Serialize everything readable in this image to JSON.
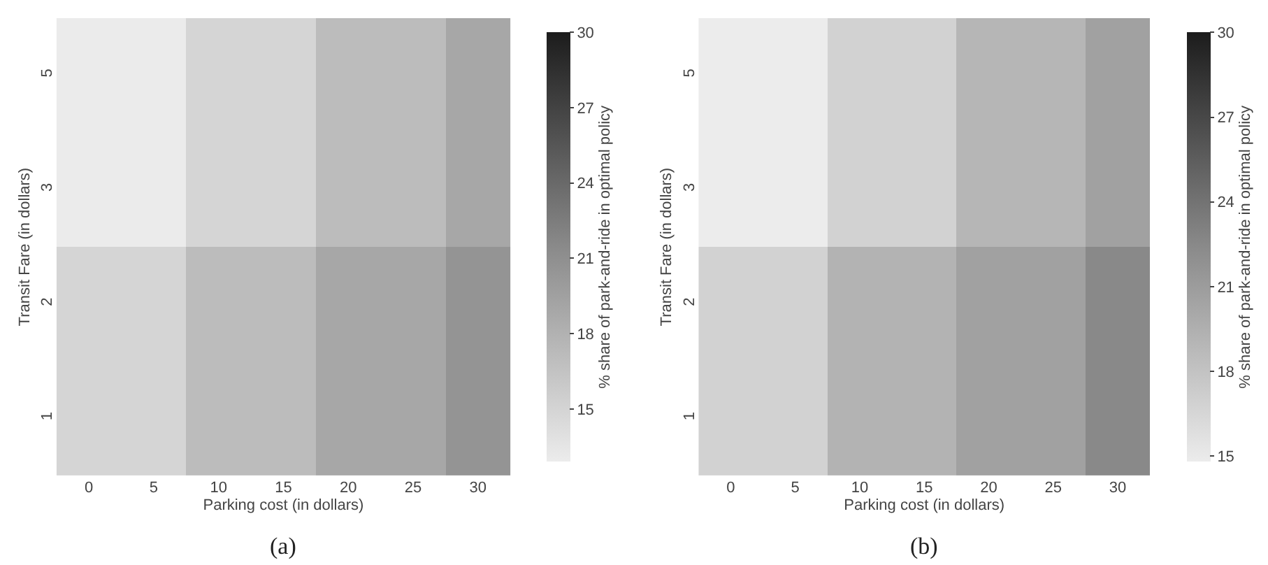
{
  "chart_data": [
    {
      "type": "heatmap",
      "xlabel": "Parking cost (in dollars)",
      "ylabel": "Transit Fare (in dollars)",
      "clabel": "% share of park-and-ride in optimal policy",
      "annotations": [
        "(a)"
      ],
      "categories": [
        "0",
        "5",
        "10",
        "15",
        "20",
        "25",
        "30"
      ],
      "y_categories": [
        "5",
        "3",
        "2",
        "1"
      ],
      "cells": [
        [
          13.0,
          13.0,
          14.9,
          14.9,
          17.1,
          17.1,
          18.9
        ],
        [
          13.0,
          13.0,
          14.9,
          14.9,
          17.1,
          17.1,
          18.9
        ],
        [
          14.9,
          14.9,
          17.1,
          17.1,
          18.9,
          18.9,
          20.6
        ],
        [
          14.9,
          14.9,
          17.1,
          17.1,
          18.9,
          18.9,
          20.6
        ]
      ],
      "clim": [
        12.9,
        30
      ],
      "cticks": [
        15,
        18,
        21,
        24,
        27,
        30
      ]
    },
    {
      "type": "heatmap",
      "xlabel": "Parking cost (in dollars)",
      "ylabel": "Transit Fare (in dollars)",
      "clabel": "% share of park-and-ride in optimal policy",
      "annotations": [
        "(b)"
      ],
      "categories": [
        "0",
        "5",
        "10",
        "15",
        "20",
        "25",
        "30"
      ],
      "y_categories": [
        "5",
        "3",
        "2",
        "1"
      ],
      "cells": [
        [
          14.8,
          14.8,
          16.8,
          16.8,
          19.0,
          19.0,
          20.6
        ],
        [
          14.8,
          14.8,
          16.8,
          16.8,
          19.0,
          19.0,
          20.6
        ],
        [
          16.8,
          16.8,
          19.2,
          19.2,
          20.6,
          20.6,
          22.5
        ],
        [
          16.8,
          16.8,
          19.2,
          19.2,
          20.6,
          20.6,
          22.5
        ]
      ],
      "clim": [
        14.8,
        30
      ],
      "cticks": [
        15,
        18,
        21,
        24,
        27,
        30
      ]
    }
  ]
}
